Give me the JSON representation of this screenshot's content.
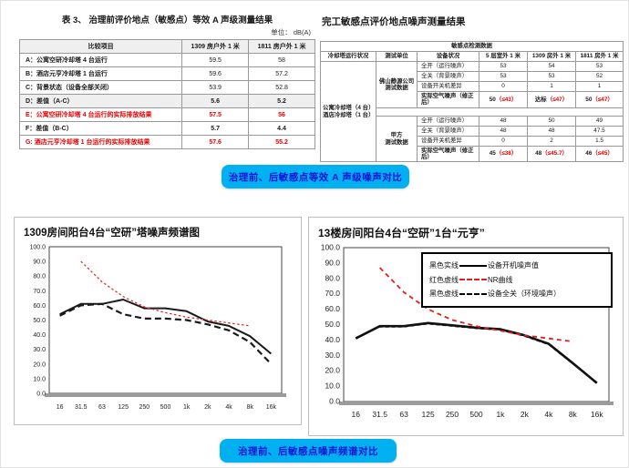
{
  "banners": {
    "mid": "治理前、后敏感点等效 A 声级噪声对比",
    "bottom": "治理前、后敏感点噪声频谱对比"
  },
  "left_table": {
    "title": "表 3、  治理前评价地点（敏感点）等效 A 声级测量结果",
    "unit": "单位： dB(A)",
    "headers": [
      "比较项目",
      "1309 房户外 1 米",
      "1811 房户外 1 米"
    ],
    "rows": [
      {
        "label": "A：公寓空研冷却塔 4 台运行",
        "v1": "59.5",
        "v2": "58"
      },
      {
        "label": "B：酒店元亨冷却塔 1 台运行",
        "v1": "59.6",
        "v2": "57.2"
      },
      {
        "label": "C：背景状态（设备全部关闭）",
        "v1": "53.9",
        "v2": "52.8"
      },
      {
        "label": "D：差值（A-C）",
        "v1": "5.6",
        "v2": "5.2"
      },
      {
        "label": "E：公寓空研冷却塔 4 台运行的实际排放结果",
        "v1": "57.5",
        "v2": "56"
      },
      {
        "label": "F：差值（B-C）",
        "v1": "5.7",
        "v2": "4.4"
      },
      {
        "label": "G: 酒店元亨冷却塔 1 台运行的实际排放结果",
        "v1": "57.6",
        "v2": "55.2"
      }
    ]
  },
  "right_table": {
    "title": "完工敏感点评价地点噪声测量结果",
    "span_header": "敏感点检测数据",
    "headers": [
      "冷却塔运行状况",
      "测试单位",
      "设备状况",
      "5 层室外 1 米",
      "1309 房外 1 米",
      "1811 房外 1 米"
    ],
    "group_lines": [
      "公寓冷却塔（4 台）",
      "酒店冷却塔（1 台）"
    ],
    "units": [
      {
        "name_lines": [
          "佛山静源公司",
          "测试数据"
        ],
        "rows": [
          {
            "label": "全开（运行噪声）",
            "c": [
              "53",
              "54",
              "53"
            ]
          },
          {
            "label": "全关（背景噪声）",
            "c": [
              "53",
              "53",
              "52"
            ]
          },
          {
            "label": "设备开关机差异",
            "c": [
              "0",
              "1",
              "1"
            ]
          },
          {
            "label": "实际空气噪声（修正后）",
            "c": [
              {
                "v": "50",
                "lim": "（≤43）"
              },
              {
                "v": "达标",
                "lim": "（≤47）"
              },
              {
                "v": "50",
                "lim": "（≤47）"
              }
            ]
          }
        ]
      },
      {
        "name_lines": [
          "甲方",
          "测试数据"
        ],
        "rows": [
          {
            "label": "全开（运行噪声）",
            "c": [
              "48",
              "50",
              "49"
            ]
          },
          {
            "label": "全关（背景噪声）",
            "c": [
              "48",
              "48",
              "47.5"
            ]
          },
          {
            "label": "设备开关机差异",
            "c": [
              "0",
              "2",
              "1.5"
            ]
          },
          {
            "label": "实际空气噪声（修正后）",
            "c": [
              {
                "v": "45",
                "lim": "（≤38）"
              },
              {
                "v": "48",
                "lim": "（≤45.7）"
              },
              {
                "v": "46",
                "lim": "（≤45）"
              }
            ]
          }
        ]
      }
    ]
  },
  "chart_data": [
    {
      "type": "line",
      "title": "1309房间阳台4台“空研”塔噪声频谱图",
      "categories": [
        "16",
        "31.5",
        "63",
        "125",
        "250",
        "500",
        "1k",
        "2k",
        "4k",
        "8k",
        "16k"
      ],
      "xlabel": "",
      "ylabel": "",
      "ylim": [
        0,
        100
      ],
      "ytick_step": 10,
      "grid": false,
      "series": [
        {
          "name": "设备开机噪声值",
          "color": "#1a1a1a",
          "dash": "solid",
          "width": 2,
          "values": [
            54,
            61,
            61,
            64,
            58,
            58,
            56,
            49,
            46,
            39,
            27
          ]
        },
        {
          "name": "设备全关（环境噪声）",
          "color": "#1a1a1a",
          "dash": "dash",
          "width": 2.2,
          "values": [
            53,
            60,
            61,
            54,
            51,
            51,
            50,
            47,
            43,
            35,
            20
          ]
        },
        {
          "name": "NR曲线",
          "color": "#e03030",
          "dash": "dot",
          "width": 1.3,
          "values": [
            null,
            90,
            76,
            66,
            59,
            55,
            52,
            50,
            48,
            46,
            null
          ]
        }
      ]
    },
    {
      "type": "line",
      "title": "13楼房间阳台4台“空研”1台“元亨”",
      "categories": [
        "16",
        "31.5",
        "63",
        "125",
        "250",
        "500",
        "1k",
        "2k",
        "4k",
        "8k",
        "16k"
      ],
      "xlabel": "",
      "ylabel": "",
      "ylim": [
        0,
        100
      ],
      "ytick_step": 10,
      "grid": false,
      "legend_position": "top-right",
      "series": [
        {
          "name": "设备开机噪声值",
          "color": "#111111",
          "dash": "solid",
          "width": 2.6,
          "values": [
            41,
            49,
            49,
            51,
            49.5,
            48,
            47,
            43,
            37.5,
            25,
            12
          ]
        },
        {
          "name": "设备全关（环境噪声）",
          "color": "#111111",
          "dash": "finedash",
          "width": 1.4,
          "values": [
            41.5,
            48.5,
            48.5,
            50.5,
            49,
            47.5,
            46.5,
            42.5,
            37,
            24.5,
            12.5
          ]
        },
        {
          "name": "NR曲线",
          "color": "#e02020",
          "dash": "reddash",
          "width": 1.8,
          "values": [
            null,
            87,
            71,
            60,
            53,
            49,
            46,
            43,
            41,
            39,
            null
          ]
        }
      ],
      "legend": [
        {
          "label": "黑色实线",
          "desc": "设备开机噪声值",
          "sample": "solid-black"
        },
        {
          "label": "红色虚线",
          "desc": "NR曲线",
          "sample": "dash-red"
        },
        {
          "label": "黑色虚线",
          "desc": "设备全关（环境噪声）",
          "sample": "dash-black"
        }
      ]
    }
  ]
}
